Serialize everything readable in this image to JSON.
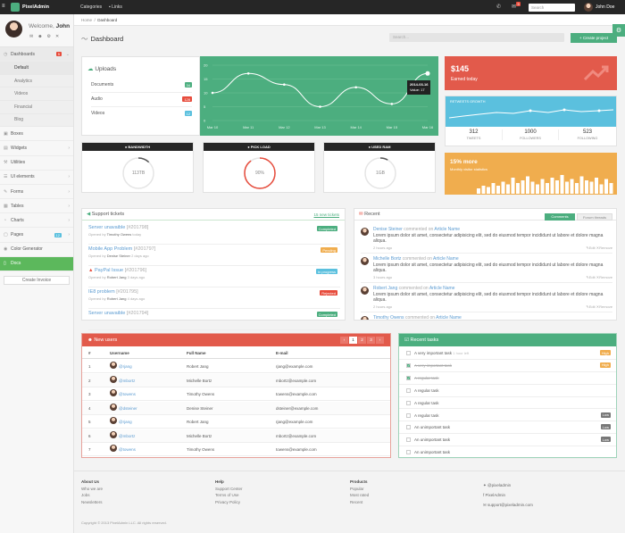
{
  "topbar": {
    "brand": "PixelAdmin",
    "categories": "Categories",
    "links": "Links",
    "msg_count": "5",
    "search_placeholder": "Search",
    "user": "John Doe"
  },
  "sidebar": {
    "welcome": "Welcome,",
    "user": "John",
    "items": [
      {
        "label": "Dashboards",
        "badge": "5"
      },
      {
        "label": "Boxes"
      },
      {
        "label": "Widgets"
      },
      {
        "label": "Utilities"
      },
      {
        "label": "UI elements"
      },
      {
        "label": "Forms"
      },
      {
        "label": "Tables"
      },
      {
        "label": "Charts"
      },
      {
        "label": "Pages",
        "badge": "12"
      },
      {
        "label": "Color Generator"
      },
      {
        "label": "Docs"
      }
    ],
    "subitems": [
      "Default",
      "Analytics",
      "Videos",
      "Financial",
      "Blog"
    ],
    "create_invoice": "Create Invoice"
  },
  "breadcrumb": {
    "home": "Home",
    "current": "Dashboard"
  },
  "header": {
    "title": "Dashboard",
    "search_placeholder": "Search...",
    "create_project": "Create project"
  },
  "uploads": {
    "title": "Uploads",
    "rows": [
      {
        "label": "Documents",
        "count": "34"
      },
      {
        "label": "Audio",
        "count": "128"
      },
      {
        "label": "Videos",
        "count": "12"
      }
    ]
  },
  "upload_chart": {
    "tooltip_date": "2014-03-16",
    "tooltip_value": "Value: 17"
  },
  "chart_data": {
    "type": "line",
    "x": [
      "Mar 10",
      "Mar 11",
      "Mar 12",
      "Mar 13",
      "Mar 14",
      "Mar 15",
      "Mar 16"
    ],
    "values": [
      10,
      17,
      13,
      5,
      12,
      6,
      17
    ],
    "ylim": [
      0,
      20
    ],
    "yticks": [
      "20",
      "15",
      "10",
      "5",
      "0"
    ]
  },
  "earned": {
    "amount": "$145",
    "label": "Earned today"
  },
  "growth": {
    "title": "RETWEETS GROWTH",
    "stats": [
      {
        "value": "312",
        "label": "TWEETS"
      },
      {
        "value": "1000",
        "label": "FOLLOWERS"
      },
      {
        "value": "523",
        "label": "FOLLOWING"
      }
    ]
  },
  "visitors": {
    "title": "15% more",
    "subtitle": "Monthly visitor statistics"
  },
  "gauges": [
    {
      "title": "BANDWIDTH",
      "value": "113TB",
      "percent": 0.12,
      "color": "#555555"
    },
    {
      "title": "PICK LOAD",
      "value": "90%",
      "percent": 0.9,
      "color": "#e74c3c"
    },
    {
      "title": "USED RAM",
      "value": "1GB",
      "percent": 0.08,
      "color": "#555555"
    }
  ],
  "tickets": {
    "title": "Support tickets",
    "link": "15 new tickets",
    "items": [
      {
        "title": "Server unavaible",
        "num": "[#201798]",
        "by": "Opened by",
        "who": "Timothy Owens",
        "when": "today",
        "status": "Completed",
        "color": "#4cae7f"
      },
      {
        "title": "Mobile App Problem",
        "num": "[#201797]",
        "by": "Opened by",
        "who": "Denise Steiner",
        "when": "2 days ago",
        "status": "Pending",
        "color": "#f0ad4e"
      },
      {
        "title": "PayPal Issue",
        "num": "[#201796]",
        "by": "Opened by",
        "who": "Robert Jang",
        "when": "3 days ago",
        "status": "In progress",
        "color": "#5bc0de"
      },
      {
        "title": "IE8 problem",
        "num": "[#201795]",
        "by": "Opened by",
        "who": "Robert Jang",
        "when": "4 days ago",
        "status": "Rejected",
        "color": "#e74c3c"
      },
      {
        "title": "Server unavaible",
        "num": "[#201794]",
        "by": "",
        "who": "",
        "when": "",
        "status": "Completed",
        "color": "#4cae7f"
      }
    ]
  },
  "recent": {
    "title": "Recent",
    "tab_comments": "Comments",
    "tab_threads": "Forum threads",
    "commented": "commented on",
    "edit": "Edit",
    "remove": "Remove",
    "items": [
      {
        "who": "Denise Steiner",
        "target": "Article Name",
        "text": "Lorem ipsum dolor sit amet, consectetur adipisicing elit, sed do eiusmod tempor incididunt ut labore et dolore magna aliqua.",
        "when": "2 hours ago"
      },
      {
        "who": "Michelle Bortz",
        "target": "Article Name",
        "text": "Lorem ipsum dolor sit amet, consectetur adipisicing elit, sed do eiusmod tempor incididunt ut labore et dolore magna aliqua.",
        "when": "3 hours ago"
      },
      {
        "who": "Robert Jang",
        "target": "Article Name",
        "text": "Lorem ipsum dolor sit amet, consectetur adipisicing elit, sed do eiusmod tempor incididunt ut labore et dolore magna aliqua.",
        "when": "2 hours ago"
      },
      {
        "who": "Timothy Owens",
        "target": "Article Name",
        "text": "",
        "when": ""
      }
    ]
  },
  "users": {
    "title": "New users",
    "pages": [
      "‹",
      "1",
      "2",
      "3",
      "›"
    ],
    "columns": [
      "#",
      "Username",
      "Full Name",
      "E-mail"
    ],
    "rows": [
      [
        "1",
        "@rjang",
        "Robert Jang",
        "rjang@example.com"
      ],
      [
        "2",
        "@mbortz",
        "Michelle Bortz",
        "mbortz@example.com"
      ],
      [
        "3",
        "@towens",
        "Timothy Owens",
        "towens@example.com"
      ],
      [
        "4",
        "@dsteiner",
        "Denise Steiner",
        "dsteiner@example.com"
      ],
      [
        "5",
        "@rjang",
        "Robert Jang",
        "rjang@example.com"
      ],
      [
        "6",
        "@mbortz",
        "Michelle Bortz",
        "mbortz@example.com"
      ],
      [
        "7",
        "@towens",
        "Timothy Owens",
        "towens@example.com"
      ]
    ]
  },
  "tasks": {
    "title": "Recent tasks",
    "items": [
      {
        "text": "A very important task",
        "note": "1 hour left",
        "checked": false,
        "label": "High",
        "color": "#f0ad4e"
      },
      {
        "text": "A very important task",
        "note": "",
        "checked": true,
        "label": "High",
        "color": "#f0ad4e"
      },
      {
        "text": "A regular task",
        "note": "",
        "checked": true,
        "label": "",
        "color": ""
      },
      {
        "text": "A regular task",
        "note": "",
        "checked": false,
        "label": "",
        "color": ""
      },
      {
        "text": "A regular task",
        "note": "",
        "checked": false,
        "label": "",
        "color": ""
      },
      {
        "text": "A regular task",
        "note": "",
        "checked": false,
        "label": "Low",
        "color": "#777777"
      },
      {
        "text": "An unimportant task",
        "note": "",
        "checked": false,
        "label": "Low",
        "color": "#777777"
      },
      {
        "text": "An unimportant task",
        "note": "",
        "checked": false,
        "label": "Low",
        "color": "#777777"
      },
      {
        "text": "An unimportant task",
        "note": "",
        "checked": false,
        "label": "",
        "color": ""
      }
    ]
  },
  "footer": {
    "cols": [
      {
        "title": "About Us",
        "links": [
          "Who we are",
          "Jobs",
          "Newsletters"
        ]
      },
      {
        "title": "Help",
        "links": [
          "Support Center",
          "Terms of Use",
          "Privacy Policy"
        ]
      },
      {
        "title": "Products",
        "links": [
          "Popular",
          "Most rated",
          "Recent"
        ]
      }
    ],
    "social": [
      "@pixeladmin",
      "PixelAdmin",
      "support@pixeladmin.com"
    ],
    "copyright": "Copyright © 2013 PixelAdmin LLC. All rights reserved."
  }
}
